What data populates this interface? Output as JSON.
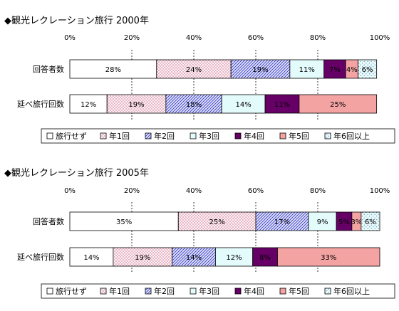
{
  "legend_labels": [
    "旅行せず",
    "年1回",
    "年2回",
    "年3回",
    "年4回",
    "年5回",
    "年6回以上"
  ],
  "style": {
    "fills": [
      "#ffffff",
      "#fdf0f3",
      "#dfe3fb",
      "#e4fbfb",
      "#660066",
      "#f4a3a3",
      "#eafafa"
    ],
    "pattern_colors": [
      "none",
      "#b03060",
      "#3030c0",
      "#40a0a0",
      "none",
      "#ffffff",
      "#3a7ab0"
    ],
    "patterns": [
      "solid",
      "dots",
      "diagonal-hatch",
      "solid",
      "solid",
      "solid",
      "dots"
    ]
  },
  "chart_data": [
    {
      "type": "bar",
      "orientation": "horizontal",
      "stacked": "percent",
      "title": "◆観光レクレーション旅行  2000年",
      "categories": [
        "回答者数",
        "延べ旅行回数"
      ],
      "xlim": [
        0,
        100
      ],
      "x_ticks": [
        "0%",
        "20%",
        "40%",
        "60%",
        "80%",
        "100%"
      ],
      "legend_position": "bottom",
      "series": [
        {
          "name": "旅行せず",
          "values": [
            28,
            12
          ],
          "labels": [
            "28%",
            "12%"
          ]
        },
        {
          "name": "年1回",
          "values": [
            24,
            19
          ],
          "labels": [
            "24%",
            "19%"
          ]
        },
        {
          "name": "年2回",
          "values": [
            19,
            18
          ],
          "labels": [
            "19%",
            "18%"
          ]
        },
        {
          "name": "年3回",
          "values": [
            11,
            14
          ],
          "labels": [
            "11%",
            "14%"
          ]
        },
        {
          "name": "年4回",
          "values": [
            7,
            11
          ],
          "labels": [
            "7%",
            "11%"
          ]
        },
        {
          "name": "年5回",
          "values": [
            4,
            25
          ],
          "labels": [
            "4%",
            "25%"
          ]
        },
        {
          "name": "年6回以上",
          "values": [
            6,
            0
          ],
          "labels": [
            "6%",
            ""
          ]
        }
      ]
    },
    {
      "type": "bar",
      "orientation": "horizontal",
      "stacked": "percent",
      "title": "◆観光レクレーション旅行  2005年",
      "categories": [
        "回答者数",
        "延べ旅行回数"
      ],
      "xlim": [
        0,
        100
      ],
      "x_ticks": [
        "0%",
        "20%",
        "40%",
        "60%",
        "80%",
        "100%"
      ],
      "legend_position": "bottom",
      "series": [
        {
          "name": "旅行せず",
          "values": [
            35,
            14
          ],
          "labels": [
            "35%",
            "14%"
          ]
        },
        {
          "name": "年1回",
          "values": [
            25,
            19
          ],
          "labels": [
            "25%",
            "19%"
          ]
        },
        {
          "name": "年2回",
          "values": [
            17,
            14
          ],
          "labels": [
            "17%",
            "14%"
          ]
        },
        {
          "name": "年3回",
          "values": [
            9,
            12
          ],
          "labels": [
            "9%",
            "12%"
          ]
        },
        {
          "name": "年4回",
          "values": [
            5,
            8
          ],
          "labels": [
            "5%",
            "8%"
          ]
        },
        {
          "name": "年5回",
          "values": [
            3,
            33
          ],
          "labels": [
            "3%",
            "33%"
          ]
        },
        {
          "name": "年6回以上",
          "values": [
            6,
            0
          ],
          "labels": [
            "6%",
            ""
          ]
        }
      ]
    }
  ]
}
